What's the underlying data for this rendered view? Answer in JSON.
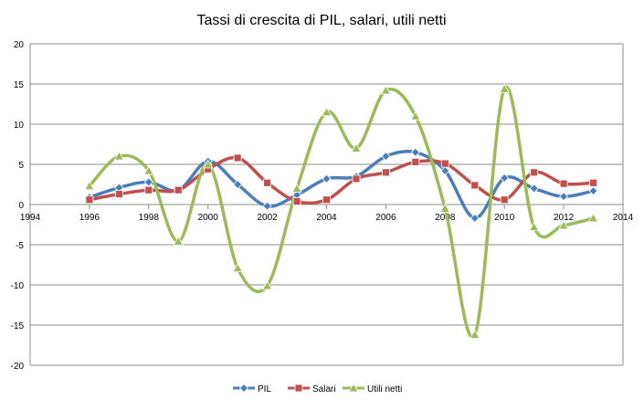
{
  "chart_data": {
    "type": "line",
    "title": "Tassi di crescita di PIL, salari, utili netti",
    "xlabel": "",
    "ylabel": "",
    "xlim": [
      1994,
      2014
    ],
    "ylim": [
      -20,
      20
    ],
    "x_ticks": [
      1994,
      1996,
      1998,
      2000,
      2002,
      2004,
      2006,
      2008,
      2010,
      2012,
      2014
    ],
    "y_ticks": [
      -20,
      -15,
      -10,
      -5,
      0,
      5,
      10,
      15,
      20
    ],
    "x_tick_labels": [
      "1994",
      "1996",
      "1998",
      "2000",
      "2002",
      "2004",
      "2006",
      "2008",
      "2010",
      "2012",
      "2014"
    ],
    "y_tick_labels": [
      "-20",
      "-15",
      "-10",
      "-5",
      "0",
      "5",
      "10",
      "15",
      "20"
    ],
    "grid": "horizontal",
    "smooth": true,
    "legend_position": "bottom",
    "x": [
      1996,
      1997,
      1998,
      1999,
      2000,
      2001,
      2002,
      2003,
      2004,
      2005,
      2006,
      2007,
      2008,
      2009,
      2010,
      2011,
      2012,
      2013
    ],
    "series": [
      {
        "name": "PIL",
        "color": "#4a7ebb",
        "marker": "diamond",
        "values": [
          0.9,
          2.1,
          2.8,
          1.8,
          5.4,
          2.5,
          -0.2,
          1.2,
          3.2,
          3.5,
          6.0,
          6.5,
          4.2,
          -1.7,
          3.3,
          2.0,
          1.0,
          1.7
        ]
      },
      {
        "name": "Salari",
        "color": "#c0504d",
        "marker": "square",
        "values": [
          0.6,
          1.3,
          1.8,
          1.8,
          4.4,
          5.8,
          2.7,
          0.4,
          0.6,
          3.2,
          4.0,
          5.3,
          5.1,
          2.4,
          0.6,
          4.0,
          2.6,
          2.7
        ]
      },
      {
        "name": "Utili netti",
        "color": "#9bbb59",
        "marker": "triangle",
        "values": [
          2.3,
          6.0,
          4.2,
          -4.6,
          5.0,
          -7.9,
          -10.1,
          2.0,
          11.5,
          7.0,
          14.2,
          11.0,
          -0.5,
          -16.2,
          14.4,
          -2.8,
          -2.6,
          -1.7
        ]
      }
    ]
  }
}
